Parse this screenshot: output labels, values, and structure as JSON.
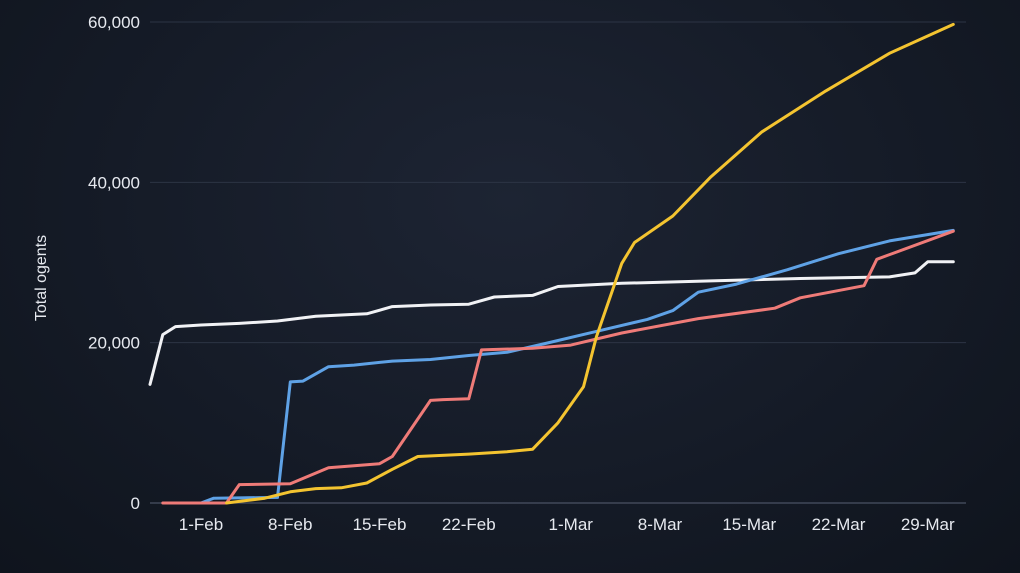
{
  "chart_data": {
    "type": "line",
    "title": "",
    "xlabel": "",
    "ylabel": "Total ogents",
    "x_range": [
      "2024-01-28",
      "2024-04-01"
    ],
    "ylim": [
      0,
      60000
    ],
    "y_ticks": [
      {
        "value": 0,
        "label": "0"
      },
      {
        "value": 20000,
        "label": "20,000"
      },
      {
        "value": 40000,
        "label": "40,000"
      },
      {
        "value": 60000,
        "label": "60,000"
      }
    ],
    "x_ticks": [
      {
        "date": "2024-02-01",
        "label": "1-Feb"
      },
      {
        "date": "2024-02-08",
        "label": "8-Feb"
      },
      {
        "date": "2024-02-15",
        "label": "15-Feb"
      },
      {
        "date": "2024-02-22",
        "label": "22-Feb"
      },
      {
        "date": "2024-03-01",
        "label": "1-Mar"
      },
      {
        "date": "2024-03-08",
        "label": "8-Mar"
      },
      {
        "date": "2024-03-15",
        "label": "15-Mar"
      },
      {
        "date": "2024-03-22",
        "label": "22-Mar"
      },
      {
        "date": "2024-03-29",
        "label": "29-Mar"
      }
    ],
    "grid": true,
    "legend": "none",
    "series": [
      {
        "color": "#f1f2f5",
        "points": [
          [
            "2024-01-28",
            14800
          ],
          [
            "2024-01-29",
            21000
          ],
          [
            "2024-01-30",
            22000
          ],
          [
            "2024-02-01",
            22200
          ],
          [
            "2024-02-04",
            22400
          ],
          [
            "2024-02-07",
            22700
          ],
          [
            "2024-02-10",
            23300
          ],
          [
            "2024-02-14",
            23600
          ],
          [
            "2024-02-16",
            24500
          ],
          [
            "2024-02-19",
            24700
          ],
          [
            "2024-02-22",
            24800
          ],
          [
            "2024-02-24",
            25700
          ],
          [
            "2024-02-27",
            25900
          ],
          [
            "2024-02-29",
            27000
          ],
          [
            "2024-03-05",
            27400
          ],
          [
            "2024-03-12",
            27700
          ],
          [
            "2024-03-19",
            28000
          ],
          [
            "2024-03-26",
            28200
          ],
          [
            "2024-03-28",
            28700
          ],
          [
            "2024-03-29",
            30100
          ],
          [
            "2024-03-31",
            30100
          ]
        ]
      },
      {
        "color": "#5fa2e6",
        "points": [
          [
            "2024-01-30",
            0
          ],
          [
            "2024-02-01",
            0
          ],
          [
            "2024-02-02",
            600
          ],
          [
            "2024-02-07",
            700
          ],
          [
            "2024-02-08",
            15100
          ],
          [
            "2024-02-09",
            15200
          ],
          [
            "2024-02-11",
            17000
          ],
          [
            "2024-02-13",
            17200
          ],
          [
            "2024-02-16",
            17700
          ],
          [
            "2024-02-19",
            17900
          ],
          [
            "2024-02-22",
            18400
          ],
          [
            "2024-02-25",
            18800
          ],
          [
            "2024-02-28",
            19900
          ],
          [
            "2024-03-03",
            21400
          ],
          [
            "2024-03-07",
            22900
          ],
          [
            "2024-03-09",
            24000
          ],
          [
            "2024-03-11",
            26300
          ],
          [
            "2024-03-14",
            27300
          ],
          [
            "2024-03-18",
            29100
          ],
          [
            "2024-03-22",
            31100
          ],
          [
            "2024-03-26",
            32700
          ],
          [
            "2024-03-31",
            34000
          ]
        ]
      },
      {
        "color": "#ef7b78",
        "points": [
          [
            "2024-01-29",
            0
          ],
          [
            "2024-02-03",
            0
          ],
          [
            "2024-02-04",
            2300
          ],
          [
            "2024-02-08",
            2400
          ],
          [
            "2024-02-11",
            4400
          ],
          [
            "2024-02-15",
            4900
          ],
          [
            "2024-02-16",
            5800
          ],
          [
            "2024-02-19",
            12800
          ],
          [
            "2024-02-20",
            12900
          ],
          [
            "2024-02-22",
            13000
          ],
          [
            "2024-02-23",
            19100
          ],
          [
            "2024-02-27",
            19300
          ],
          [
            "2024-03-01",
            19700
          ],
          [
            "2024-03-05",
            21200
          ],
          [
            "2024-03-11",
            23000
          ],
          [
            "2024-03-17",
            24300
          ],
          [
            "2024-03-19",
            25600
          ],
          [
            "2024-03-24",
            27100
          ],
          [
            "2024-03-25",
            30400
          ],
          [
            "2024-03-31",
            33900
          ]
        ]
      },
      {
        "color": "#f4c430",
        "points": [
          [
            "2024-02-03",
            0
          ],
          [
            "2024-02-04",
            200
          ],
          [
            "2024-02-06",
            600
          ],
          [
            "2024-02-08",
            1400
          ],
          [
            "2024-02-10",
            1800
          ],
          [
            "2024-02-12",
            1900
          ],
          [
            "2024-02-14",
            2500
          ],
          [
            "2024-02-16",
            4200
          ],
          [
            "2024-02-18",
            5800
          ],
          [
            "2024-02-22",
            6100
          ],
          [
            "2024-02-25",
            6400
          ],
          [
            "2024-02-27",
            6700
          ],
          [
            "2024-02-29",
            10000
          ],
          [
            "2024-03-02",
            14500
          ],
          [
            "2024-03-03",
            20700
          ],
          [
            "2024-03-05",
            29900
          ],
          [
            "2024-03-06",
            32500
          ],
          [
            "2024-03-09",
            35800
          ],
          [
            "2024-03-12",
            40700
          ],
          [
            "2024-03-16",
            46300
          ],
          [
            "2024-03-21",
            51400
          ],
          [
            "2024-03-26",
            56100
          ],
          [
            "2024-03-31",
            59700
          ]
        ]
      }
    ]
  }
}
